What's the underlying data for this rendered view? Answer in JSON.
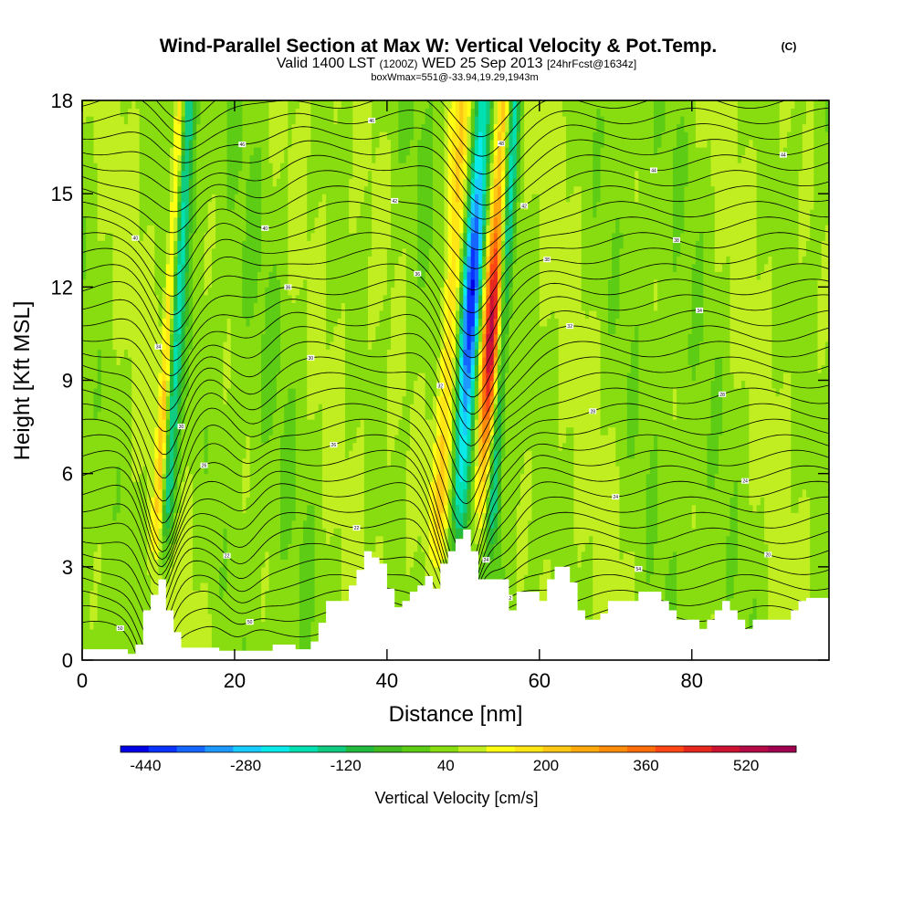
{
  "chart_data": {
    "type": "heatmap",
    "title": "Wind-Parallel Section at Max W: Vertical Velocity & Pot.Temp.",
    "title_mark": "(C)",
    "subtitle_main": "Valid 1400 LST",
    "subtitle_utc": "(1200Z)",
    "subtitle_date": "WED 25 Sep 2013",
    "subtitle_fcst": "[24hrFcst@1634z]",
    "subtitle2": "boxWmax=551@-33.94,19.29,1943m",
    "xlabel": "Distance [nm]",
    "ylabel": "Height [Kft MSL]",
    "xlim": [
      0,
      98
    ],
    "ylim": [
      0,
      18
    ],
    "x_ticks": [
      "0",
      "20",
      "40",
      "60",
      "80"
    ],
    "x_tick_values": [
      0,
      20,
      40,
      60,
      80
    ],
    "y_ticks": [
      "0",
      "3",
      "6",
      "9",
      "12",
      "15",
      "18"
    ],
    "y_tick_values": [
      0,
      3,
      6,
      9,
      12,
      15,
      18
    ],
    "colorbar": {
      "title": "Vertical Velocity [cm/s]",
      "min": -480,
      "max": 600,
      "labels": [
        "-440",
        "-280",
        "-120",
        "40",
        "200",
        "360",
        "520"
      ],
      "label_values": [
        -440,
        -280,
        -120,
        40,
        200,
        360,
        520
      ],
      "colors": [
        "#0000e6",
        "#0a33ff",
        "#1466ff",
        "#1e99ff",
        "#19ccff",
        "#0aeaea",
        "#00e0b0",
        "#10cc80",
        "#22bb40",
        "#40bb20",
        "#5ccc14",
        "#88dd10",
        "#c0ee20",
        "#ffff14",
        "#ffe614",
        "#ffc814",
        "#ffaa0a",
        "#ff8c0a",
        "#ff6e0a",
        "#ff4614",
        "#e6281e",
        "#cc1432",
        "#b40a46",
        "#a00050"
      ]
    },
    "terrain_kft": [
      [
        0,
        0.35
      ],
      [
        6,
        0.35
      ],
      [
        6,
        0.2
      ],
      [
        7,
        0.2
      ],
      [
        7,
        0.5
      ],
      [
        8,
        0.5
      ],
      [
        8,
        1.6
      ],
      [
        9,
        1.6
      ],
      [
        9,
        2.1
      ],
      [
        10,
        2.1
      ],
      [
        10,
        2.6
      ],
      [
        11,
        2.6
      ],
      [
        11,
        1.6
      ],
      [
        12,
        1.6
      ],
      [
        12,
        0.9
      ],
      [
        13,
        0.9
      ],
      [
        13,
        0.4
      ],
      [
        18,
        0.4
      ],
      [
        18,
        0.3
      ],
      [
        25,
        0.3
      ],
      [
        25,
        0.5
      ],
      [
        28,
        0.5
      ],
      [
        28,
        0.35
      ],
      [
        30,
        0.35
      ],
      [
        30,
        0.6
      ],
      [
        31,
        0.6
      ],
      [
        31,
        1.2
      ],
      [
        32,
        1.2
      ],
      [
        32,
        1.9
      ],
      [
        35,
        1.9
      ],
      [
        35,
        2.4
      ],
      [
        36,
        2.4
      ],
      [
        36,
        2.9
      ],
      [
        37,
        2.9
      ],
      [
        37,
        3.5
      ],
      [
        38,
        3.5
      ],
      [
        38,
        3.3
      ],
      [
        39,
        3.3
      ],
      [
        39,
        3.1
      ],
      [
        40,
        3.1
      ],
      [
        40,
        2.3
      ],
      [
        41,
        2.3
      ],
      [
        41,
        1.7
      ],
      [
        42,
        1.7
      ],
      [
        42,
        1.9
      ],
      [
        43,
        1.9
      ],
      [
        43,
        2.2
      ],
      [
        44,
        2.2
      ],
      [
        44,
        2.4
      ],
      [
        45,
        2.4
      ],
      [
        45,
        2.7
      ],
      [
        46,
        2.7
      ],
      [
        46,
        2.3
      ],
      [
        47,
        2.3
      ],
      [
        47,
        3.1
      ],
      [
        48,
        3.1
      ],
      [
        48,
        3.5
      ],
      [
        49,
        3.5
      ],
      [
        49,
        3.9
      ],
      [
        50,
        3.9
      ],
      [
        50,
        4.2
      ],
      [
        51,
        4.2
      ],
      [
        51,
        3.5
      ],
      [
        52,
        3.5
      ],
      [
        52,
        2.6
      ],
      [
        56,
        2.6
      ],
      [
        56,
        1.6
      ],
      [
        57,
        1.6
      ],
      [
        57,
        2.2
      ],
      [
        60,
        2.2
      ],
      [
        60,
        1.9
      ],
      [
        61,
        1.9
      ],
      [
        61,
        2.6
      ],
      [
        62,
        2.6
      ],
      [
        62,
        3.0
      ],
      [
        64,
        3.0
      ],
      [
        64,
        2.5
      ],
      [
        65,
        2.5
      ],
      [
        65,
        1.6
      ],
      [
        66,
        1.6
      ],
      [
        66,
        1.3
      ],
      [
        68,
        1.3
      ],
      [
        68,
        1.5
      ],
      [
        69,
        1.5
      ],
      [
        69,
        1.9
      ],
      [
        73,
        1.9
      ],
      [
        73,
        2.2
      ],
      [
        76,
        2.2
      ],
      [
        76,
        1.9
      ],
      [
        77,
        1.9
      ],
      [
        77,
        1.6
      ],
      [
        78,
        1.6
      ],
      [
        78,
        1.3
      ],
      [
        81,
        1.3
      ],
      [
        81,
        1.0
      ],
      [
        82,
        1.0
      ],
      [
        82,
        1.3
      ],
      [
        83,
        1.3
      ],
      [
        83,
        1.6
      ],
      [
        84,
        1.6
      ],
      [
        84,
        1.9
      ],
      [
        85,
        1.9
      ],
      [
        85,
        1.6
      ],
      [
        86,
        1.6
      ],
      [
        86,
        1.3
      ],
      [
        87,
        1.3
      ],
      [
        87,
        1.0
      ],
      [
        88,
        1.0
      ],
      [
        88,
        1.3
      ],
      [
        93,
        1.3
      ],
      [
        93,
        1.6
      ],
      [
        94,
        1.6
      ],
      [
        94,
        1.9
      ],
      [
        95,
        1.9
      ],
      [
        95,
        2.0
      ],
      [
        98,
        2.0
      ]
    ],
    "updraft_cores": [
      {
        "x0": 10,
        "x1": 12,
        "peak_cm_s": 250
      },
      {
        "x0": 46,
        "x1": 50,
        "peak_cm_s": 220
      },
      {
        "x0": 51.5,
        "x1": 55.5,
        "peak_cm_s": 551
      }
    ],
    "downdraft_cores": [
      {
        "x0": 10.5,
        "x1": 13.5,
        "peak_cm_s": -200
      },
      {
        "x0": 48.5,
        "x1": 52.5,
        "peak_cm_s": -440
      },
      {
        "x0": 53.5,
        "x1": 56,
        "peak_cm_s": -250
      }
    ],
    "isentrope_labels": [
      "14",
      "18",
      "18",
      "18",
      "20",
      "20",
      "22",
      "22",
      "24",
      "24",
      "24",
      "26",
      "26",
      "28",
      "28",
      "28",
      "30",
      "30",
      "32",
      "32",
      "34",
      "34",
      "36",
      "36",
      "38",
      "38",
      "40",
      "40",
      "42",
      "42",
      "44",
      "44",
      "46",
      "46",
      "48",
      "48",
      "50",
      "50",
      "52",
      "52",
      "54"
    ]
  }
}
